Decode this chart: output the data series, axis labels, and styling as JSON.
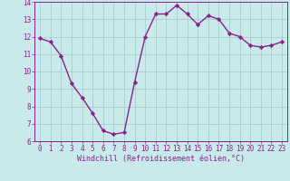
{
  "x": [
    0,
    1,
    2,
    3,
    4,
    5,
    6,
    7,
    8,
    9,
    10,
    11,
    12,
    13,
    14,
    15,
    16,
    17,
    18,
    19,
    20,
    21,
    22,
    23
  ],
  "y": [
    11.9,
    11.7,
    10.9,
    9.3,
    8.5,
    7.6,
    6.6,
    6.4,
    6.5,
    9.4,
    12.0,
    13.3,
    13.3,
    13.8,
    13.3,
    12.7,
    13.2,
    13.0,
    12.2,
    12.0,
    11.5,
    11.4,
    11.5,
    11.7
  ],
  "line_color": "#8b2090",
  "marker": "D",
  "marker_size": 2.2,
  "bg_color": "#c8eaea",
  "grid_color": "#b0d8d8",
  "xlabel": "Windchill (Refroidissement éolien,°C)",
  "xlabel_color": "#8b2090",
  "tick_color": "#8b2090",
  "ylim": [
    6,
    14
  ],
  "xlim": [
    -0.5,
    23.5
  ],
  "yticks": [
    6,
    7,
    8,
    9,
    10,
    11,
    12,
    13,
    14
  ],
  "xticks": [
    0,
    1,
    2,
    3,
    4,
    5,
    6,
    7,
    8,
    9,
    10,
    11,
    12,
    13,
    14,
    15,
    16,
    17,
    18,
    19,
    20,
    21,
    22,
    23
  ],
  "font_size_tick": 5.5,
  "font_size_label": 6.0,
  "line_width": 1.0
}
